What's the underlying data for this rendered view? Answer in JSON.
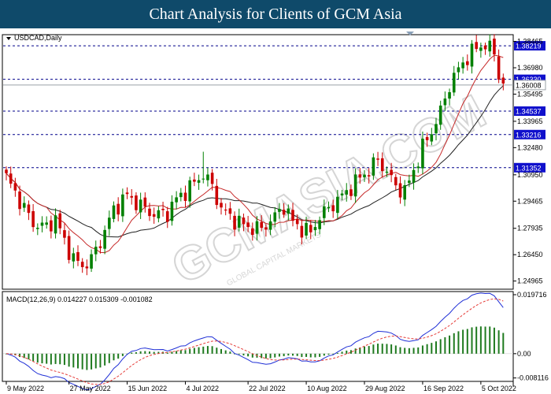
{
  "banner": {
    "title": "Chart Analysis for Clients of GCM Asia"
  },
  "watermark": {
    "text": "GCMASIA.COM",
    "subtext": "GLOBAL CAPITAL MARKETS"
  },
  "colors": {
    "bull": "#008000",
    "bear": "#cc0000",
    "level_line": "#00008b",
    "level_label_bg": "#1010cc",
    "ma_fast": "#c62828",
    "ma_slow": "#222222",
    "macd_line": "#1f2fd6",
    "signal_line": "#e53935",
    "histogram": "#1f7a1f"
  },
  "chart_data": {
    "type": "candlestick",
    "symbol_label": "USDCAD,Daily",
    "price_axis": {
      "ylim": [
        1.2455,
        1.388
      ],
      "ticks": [
        "1.38465",
        "1.36980",
        "1.35495",
        "1.33965",
        "1.32480",
        "1.30950",
        "1.29465",
        "1.27935",
        "1.26450",
        "1.24965"
      ],
      "current_price": "1.36008",
      "levels": [
        "1.38219",
        "1.36330",
        "1.34537",
        "1.33216",
        "1.31352"
      ]
    },
    "x_axis": {
      "labels": [
        {
          "text": "9 May 2022",
          "index": 0
        },
        {
          "text": "27 May 2022",
          "index": 14
        },
        {
          "text": "15 Jun 2022",
          "index": 27
        },
        {
          "text": "4 Jul 2022",
          "index": 40
        },
        {
          "text": "22 Jul 2022",
          "index": 54
        },
        {
          "text": "10 Aug 2022",
          "index": 67
        },
        {
          "text": "29 Aug 2022",
          "index": 80
        },
        {
          "text": "16 Sep 2022",
          "index": 93
        },
        {
          "text": "5 Oct 2022",
          "index": 106
        }
      ]
    },
    "macd": {
      "label": "MACD(12,26,9) 0.014227 0.015309 -0.001082",
      "ylim": [
        -0.009,
        0.0205
      ],
      "ticks": [
        "0.019716",
        "0.00",
        "-0.008116"
      ]
    }
  }
}
